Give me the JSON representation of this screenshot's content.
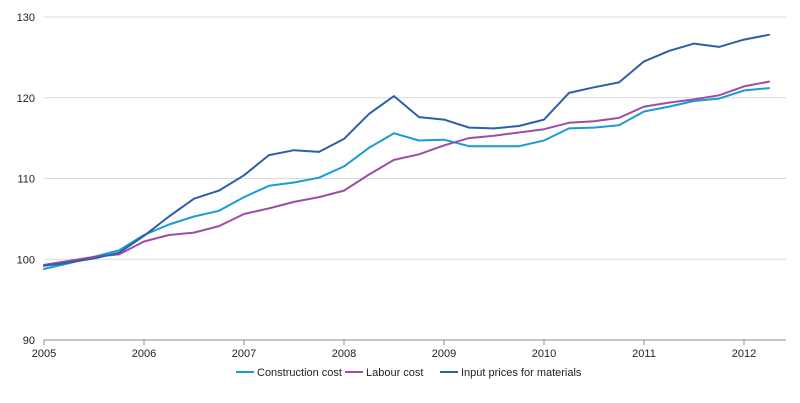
{
  "chart_data": {
    "type": "line",
    "title": "",
    "xlabel": "",
    "ylabel": "",
    "ylim": [
      90,
      130
    ],
    "yticks": [
      90,
      100,
      110,
      120,
      130
    ],
    "xlim": [
      2005,
      2012.42
    ],
    "xticks": [
      2005,
      2006,
      2007,
      2008,
      2009,
      2010,
      2011,
      2012
    ],
    "xtick_labels": [
      "2005",
      "2006",
      "2007",
      "2008",
      "2009",
      "2010",
      "2011",
      "2012"
    ],
    "grid": "horizontal",
    "legend_position": "bottom",
    "x": [
      2005.0,
      2005.25,
      2005.5,
      2005.75,
      2006.0,
      2006.25,
      2006.5,
      2006.75,
      2007.0,
      2007.25,
      2007.5,
      2007.75,
      2008.0,
      2008.25,
      2008.5,
      2008.75,
      2009.0,
      2009.25,
      2009.5,
      2009.75,
      2010.0,
      2010.25,
      2010.5,
      2010.75,
      2011.0,
      2011.25,
      2011.5,
      2011.75,
      2012.0,
      2012.25
    ],
    "series": [
      {
        "name": "Construction cost",
        "color": "#1a9ad6",
        "values": [
          98.8,
          99.5,
          100.3,
          101.1,
          103.0,
          104.3,
          105.3,
          106.0,
          107.7,
          109.1,
          109.5,
          110.1,
          111.5,
          113.8,
          115.6,
          114.7,
          114.8,
          114.0,
          114.0,
          114.0,
          114.7,
          116.2,
          116.3,
          116.6,
          118.3,
          118.9,
          119.6,
          119.9,
          120.9,
          121.2
        ]
      },
      {
        "name": "Labour cost",
        "color": "#9b4fa0",
        "values": [
          99.3,
          99.8,
          100.3,
          100.6,
          102.2,
          103.0,
          103.3,
          104.1,
          105.6,
          106.3,
          107.1,
          107.7,
          108.5,
          110.5,
          112.3,
          113.0,
          114.1,
          115.0,
          115.3,
          115.7,
          116.1,
          116.9,
          117.1,
          117.5,
          118.9,
          119.4,
          119.8,
          120.3,
          121.4,
          122.0
        ]
      },
      {
        "name": "Input prices for materials",
        "color": "#2f5ea8",
        "values": [
          99.2,
          99.6,
          100.1,
          100.8,
          102.9,
          105.3,
          107.5,
          108.5,
          110.4,
          112.9,
          113.5,
          113.3,
          114.9,
          118.0,
          120.2,
          117.6,
          117.3,
          116.3,
          116.2,
          116.5,
          117.3,
          120.6,
          121.3,
          121.9,
          124.5,
          125.8,
          126.7,
          126.3,
          127.2,
          127.8
        ]
      }
    ]
  }
}
